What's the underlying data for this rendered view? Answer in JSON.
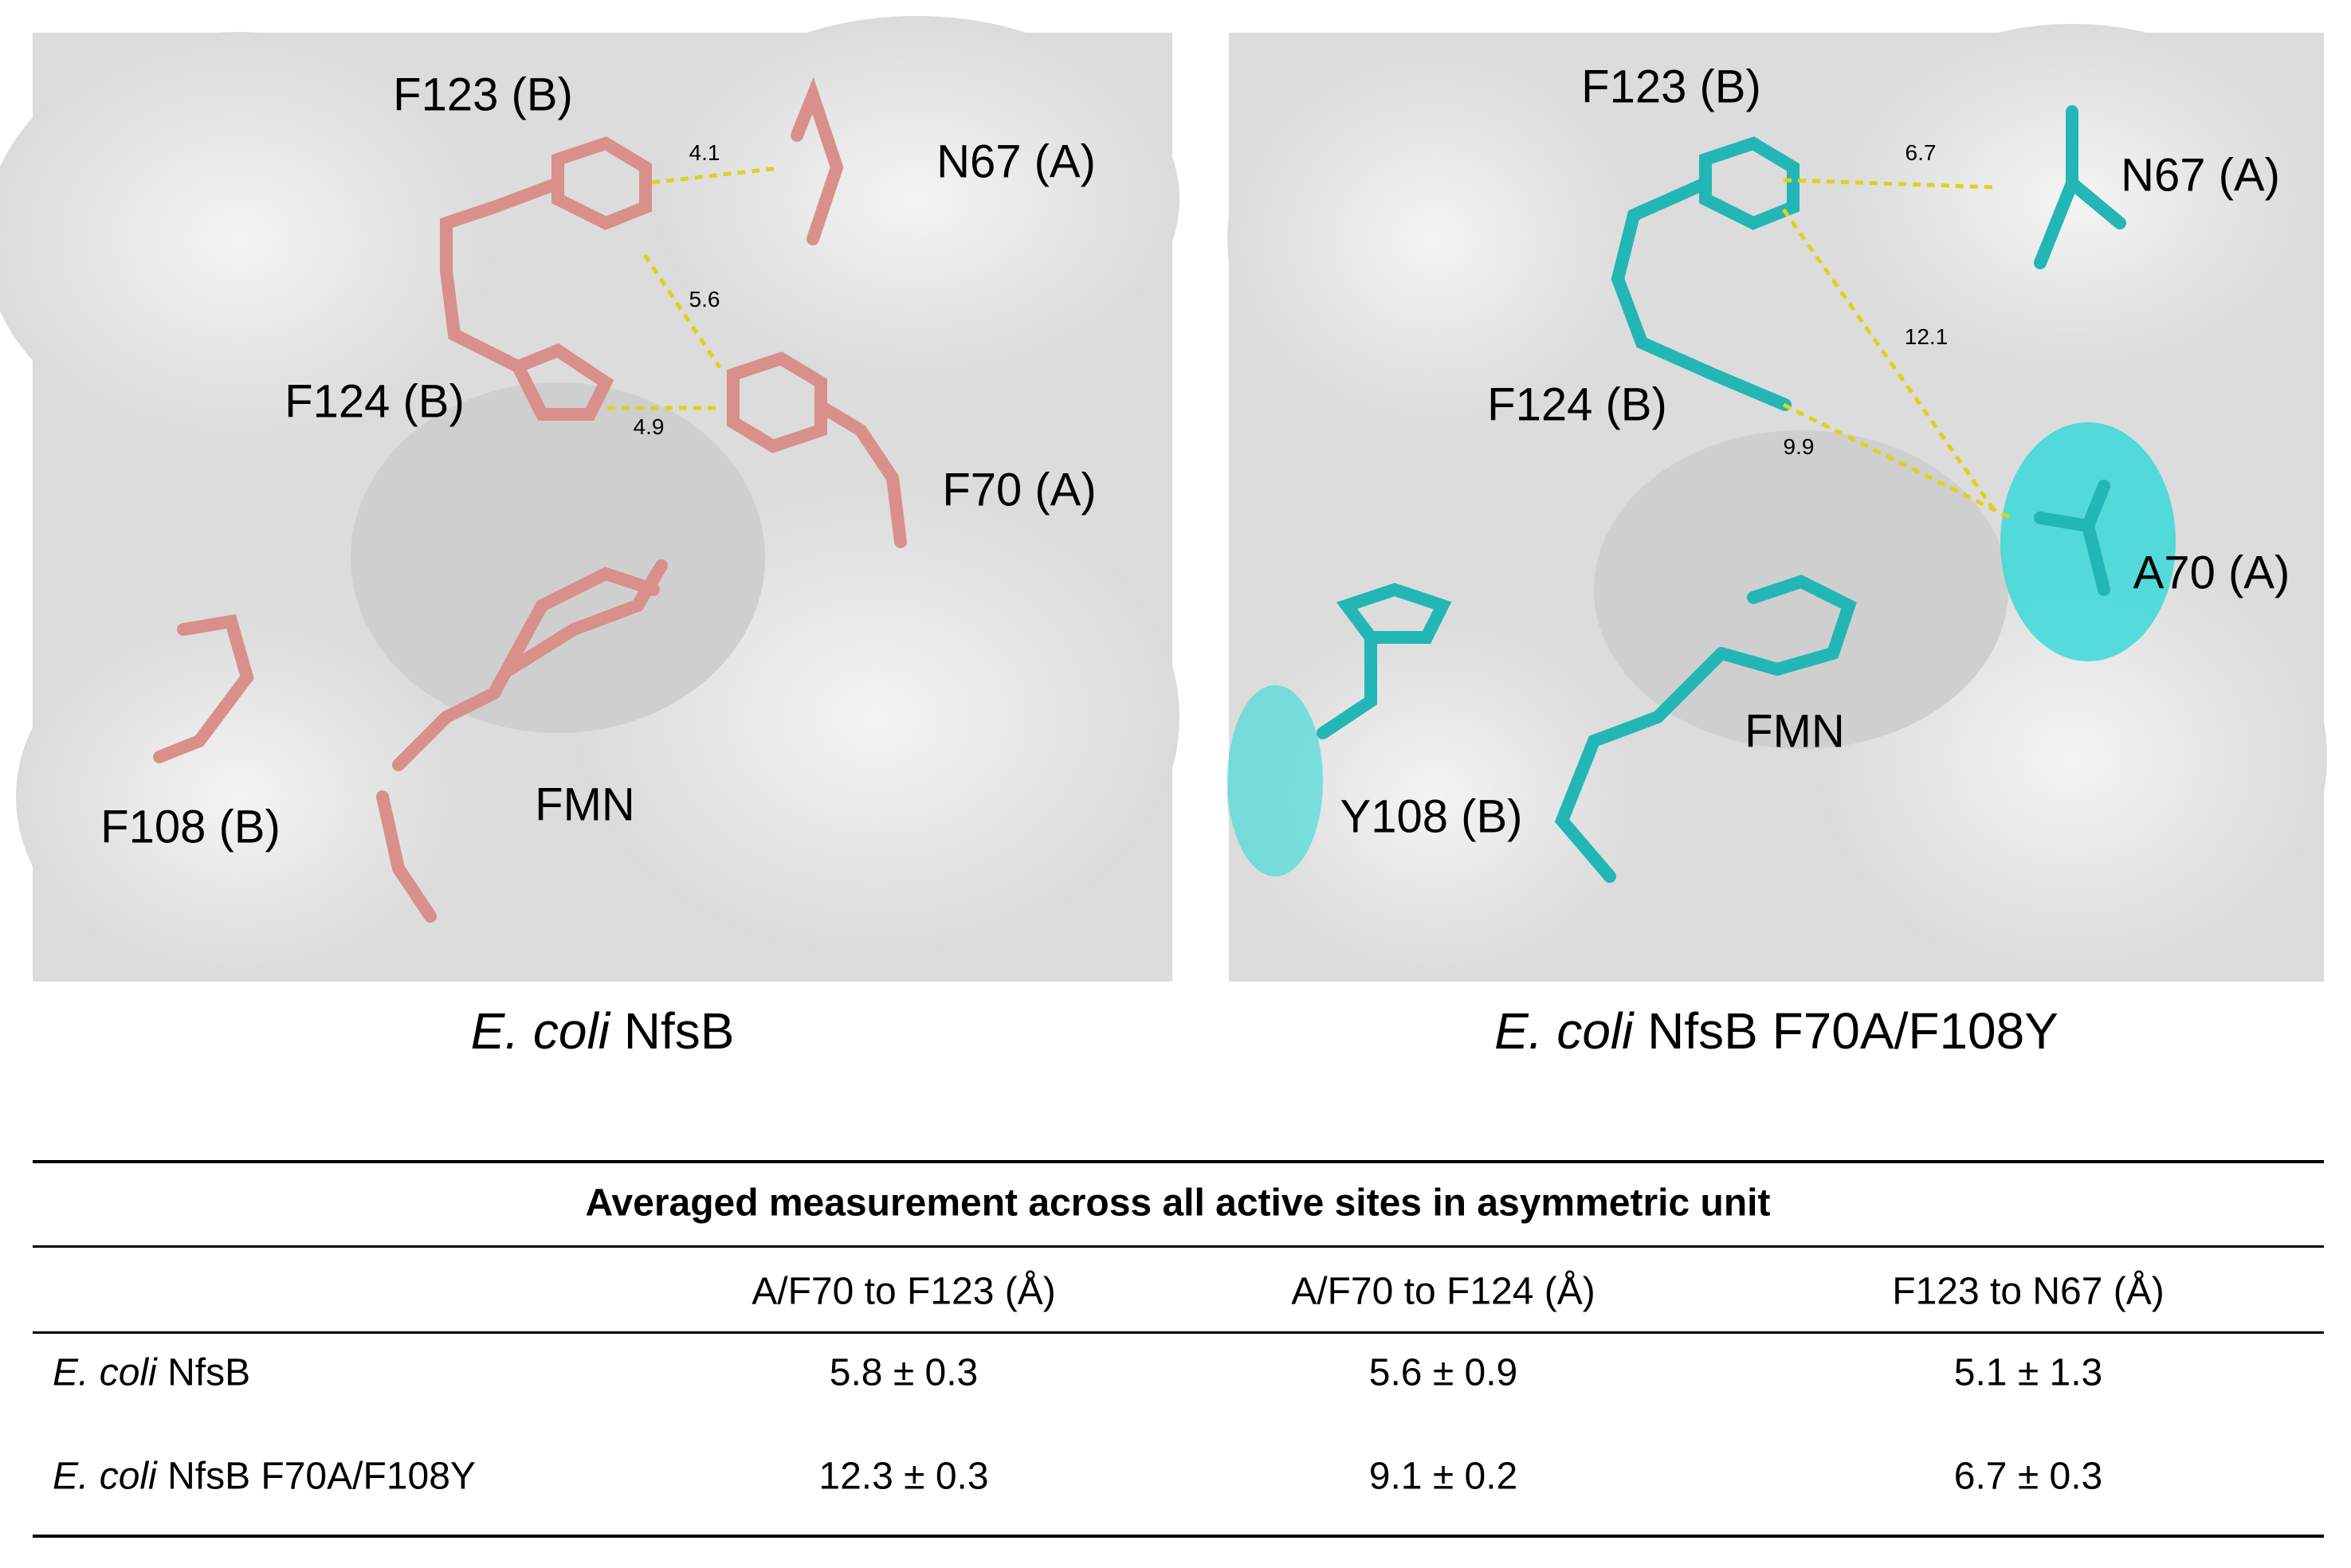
{
  "panels": [
    {
      "caption": {
        "italic": "E. coli",
        "rest": "NfsB"
      },
      "labels": [
        "F123 (B)",
        "N67 (A)",
        "F124 (B)",
        "F70 (A)",
        "F108 (B)",
        "FMN"
      ],
      "distances": [
        "4.1",
        "5.6",
        "4.9"
      ]
    },
    {
      "caption": {
        "italic": "E. coli",
        "rest": "NfsB F70A/F108Y"
      },
      "labels": [
        "F123 (B)",
        "N67 (A)",
        "F124 (B)",
        "A70 (A)",
        "Y108 (B)",
        "FMN"
      ],
      "distances": [
        "6.7",
        "12.1",
        "9.9"
      ]
    }
  ],
  "table": {
    "title": "Averaged measurement across all active sites in asymmetric unit",
    "columns": [
      "A/F70 to F123 (Å)",
      "A/F70 to F124 (Å)",
      "F123 to N67 (Å)"
    ],
    "rows": [
      {
        "italic": "E. coli",
        "rest": "NfsB",
        "values": [
          "5.8 ± 0.3",
          "5.6 ± 0.9",
          "5.1 ± 1.3"
        ]
      },
      {
        "italic": "E. coli",
        "rest": "NfsB F70A/F108Y",
        "values": [
          "12.3 ± 0.3",
          "9.1 ± 0.2",
          "6.7 ± 0.3"
        ]
      }
    ]
  }
}
